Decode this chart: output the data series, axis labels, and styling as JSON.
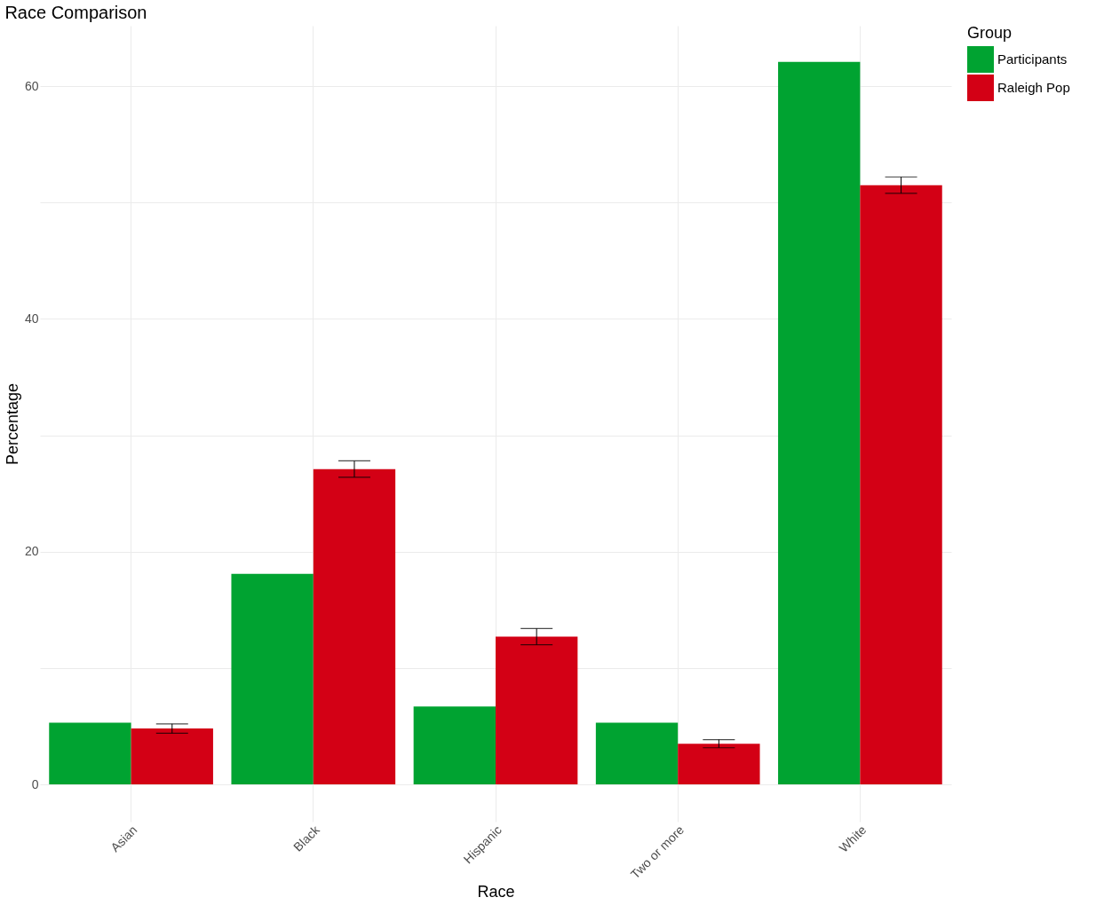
{
  "chart_data": {
    "type": "bar",
    "title": "Race Comparison",
    "xlabel": "Race",
    "ylabel": "Percentage",
    "legend_title": "Group",
    "categories": [
      "Asian",
      "Black",
      "Hispanic",
      "Two or more",
      "White"
    ],
    "series": [
      {
        "name": "Participants",
        "color": "#00a331",
        "values": [
          5.3,
          18.1,
          6.7,
          5.3,
          62.1
        ]
      },
      {
        "name": "Raleigh Pop",
        "color": "#d30015",
        "values": [
          4.8,
          27.1,
          12.7,
          3.5,
          51.5
        ],
        "errors": [
          0.4,
          0.7,
          0.7,
          0.35,
          0.7
        ]
      }
    ],
    "ylim": [
      -3.2,
      65.2
    ],
    "yticks": [
      0,
      {
        "value": 10,
        "label": null
      },
      20,
      {
        "value": 30,
        "label": null
      },
      40,
      {
        "value": 50,
        "label": null
      },
      60
    ],
    "grid": true,
    "legend": "right"
  }
}
